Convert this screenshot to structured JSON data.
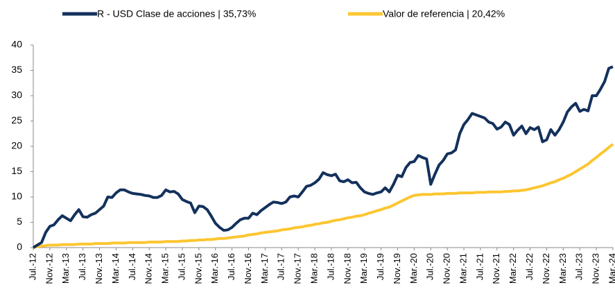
{
  "chart_data": {
    "type": "line",
    "categories": [
      "Jul.-12",
      null,
      null,
      null,
      "Nov.-12",
      null,
      null,
      null,
      "Mar.-13",
      null,
      null,
      null,
      "Jul.-13",
      null,
      null,
      null,
      "Nov.-13",
      null,
      null,
      null,
      "Mar.-14",
      null,
      null,
      null,
      "Jul.-14",
      null,
      null,
      null,
      "Nov.-14",
      null,
      null,
      null,
      "Mar.-15",
      null,
      null,
      null,
      "Jul.-15",
      null,
      null,
      null,
      "Nov.-15",
      null,
      null,
      null,
      "Mar.-16",
      null,
      null,
      null,
      "Jul.-16",
      null,
      null,
      null,
      "Nov.-16",
      null,
      null,
      null,
      "Mar.-17",
      null,
      null,
      null,
      "Jul.-17",
      null,
      null,
      null,
      "Nov.-17",
      null,
      null,
      null,
      "Mar.-18",
      null,
      null,
      null,
      "Jul.-18",
      null,
      null,
      null,
      "Nov.-18",
      null,
      null,
      null,
      "Mar.-19",
      null,
      null,
      null,
      "Jul.-19",
      null,
      null,
      null,
      "Nov.-19",
      null,
      null,
      null,
      "Mar.-20",
      null,
      null,
      null,
      "Jul.-20",
      null,
      null,
      null,
      "Nov.-20",
      null,
      null,
      null,
      "Mar.-21",
      null,
      null,
      null,
      "Jul.-21",
      null,
      null,
      null,
      "Nov.-21",
      null,
      null,
      null,
      "Mar.-22",
      null,
      null,
      null,
      "Jul.-22",
      null,
      null,
      null,
      "Nov.-22",
      null,
      null,
      null,
      "Mar.-23",
      null,
      null,
      null,
      "Jul.-23",
      null,
      null,
      null,
      "Nov.-23",
      null,
      null,
      null,
      "Mar.-24"
    ],
    "series": [
      {
        "name": "R - USD Clase de acciones | 35,73%",
        "color": "#13315c",
        "values": [
          0,
          0.5,
          1,
          3,
          4.2,
          4.5,
          5.5,
          6.3,
          5.8,
          5.3,
          6.5,
          7.5,
          6.1,
          6.0,
          6.5,
          6.8,
          7.5,
          8.2,
          10,
          9.9,
          10.8,
          11.4,
          11.4,
          11.0,
          10.7,
          10.6,
          10.5,
          10.3,
          10.2,
          9.9,
          9.9,
          10.3,
          11.4,
          11.0,
          11.1,
          10.6,
          9.5,
          9.1,
          8.8,
          6.9,
          8.2,
          8.1,
          7.5,
          6.2,
          4.8,
          4.0,
          3.4,
          3.5,
          4.0,
          4.8,
          5.5,
          5.8,
          5.8,
          6.8,
          6.5,
          7.3,
          7.9,
          8.5,
          9.0,
          8.9,
          8.7,
          9.0,
          10.0,
          10.2,
          10.0,
          11.0,
          12.1,
          12.3,
          12.8,
          13.5,
          14.8,
          14.4,
          14.2,
          14.5,
          13.2,
          13.0,
          13.4,
          12.8,
          12.9,
          11.8,
          11.0,
          10.7,
          10.5,
          10.8,
          11.0,
          11.8,
          11.0,
          12.5,
          14.3,
          14.0,
          15.8,
          16.8,
          17.0,
          18.2,
          17.8,
          17.5,
          12.5,
          14.5,
          16.3,
          17.2,
          18.5,
          18.7,
          19.3,
          22.5,
          24.3,
          25.3,
          26.5,
          26.2,
          25.9,
          25.6,
          24.8,
          24.5,
          23.4,
          23.8,
          24.8,
          24.3,
          22.2,
          23.2,
          24.0,
          22.5,
          23.7,
          23.3,
          23.8,
          20.9,
          21.3,
          23.3,
          22.2,
          23.3,
          24.8,
          26.8,
          27.8,
          28.5,
          26.9,
          27.3,
          27.0,
          30.0,
          30.0,
          31.3,
          32.8,
          35.4,
          35.73
        ]
      },
      {
        "name": "Valor de referencia | 20,42%",
        "color": "#fcc631",
        "values": [
          0,
          0.2,
          0.3,
          0.4,
          0.5,
          0.5,
          0.5,
          0.6,
          0.6,
          0.6,
          0.6,
          0.7,
          0.7,
          0.7,
          0.7,
          0.8,
          0.8,
          0.8,
          0.8,
          0.9,
          0.9,
          0.9,
          0.9,
          1.0,
          1.0,
          1.0,
          1.0,
          1.0,
          1.1,
          1.1,
          1.1,
          1.1,
          1.2,
          1.2,
          1.2,
          1.2,
          1.3,
          1.3,
          1.4,
          1.4,
          1.5,
          1.5,
          1.6,
          1.6,
          1.7,
          1.8,
          1.8,
          1.9,
          2.0,
          2.1,
          2.2,
          2.3,
          2.5,
          2.6,
          2.7,
          2.9,
          3.0,
          3.1,
          3.2,
          3.3,
          3.5,
          3.6,
          3.7,
          3.9,
          4.0,
          4.1,
          4.3,
          4.4,
          4.6,
          4.7,
          4.9,
          5.0,
          5.2,
          5.4,
          5.5,
          5.7,
          5.9,
          6.0,
          6.2,
          6.3,
          6.5,
          6.8,
          7.0,
          7.3,
          7.5,
          7.8,
          8.0,
          8.4,
          8.8,
          9.2,
          9.6,
          10.0,
          10.3,
          10.4,
          10.5,
          10.5,
          10.5,
          10.6,
          10.6,
          10.6,
          10.7,
          10.7,
          10.7,
          10.8,
          10.8,
          10.8,
          10.8,
          10.9,
          10.9,
          10.9,
          11.0,
          11.0,
          11.0,
          11.0,
          11.1,
          11.1,
          11.2,
          11.2,
          11.3,
          11.4,
          11.6,
          11.8,
          12.0,
          12.2,
          12.5,
          12.8,
          13.0,
          13.4,
          13.7,
          14.1,
          14.5,
          15.0,
          15.5,
          16.0,
          16.5,
          17.2,
          17.8,
          18.5,
          19.1,
          19.8,
          20.42
        ]
      }
    ],
    "ylim": [
      0,
      40
    ],
    "yticks": [
      0,
      5,
      10,
      15,
      20,
      25,
      30,
      35,
      40
    ],
    "grid": false
  }
}
